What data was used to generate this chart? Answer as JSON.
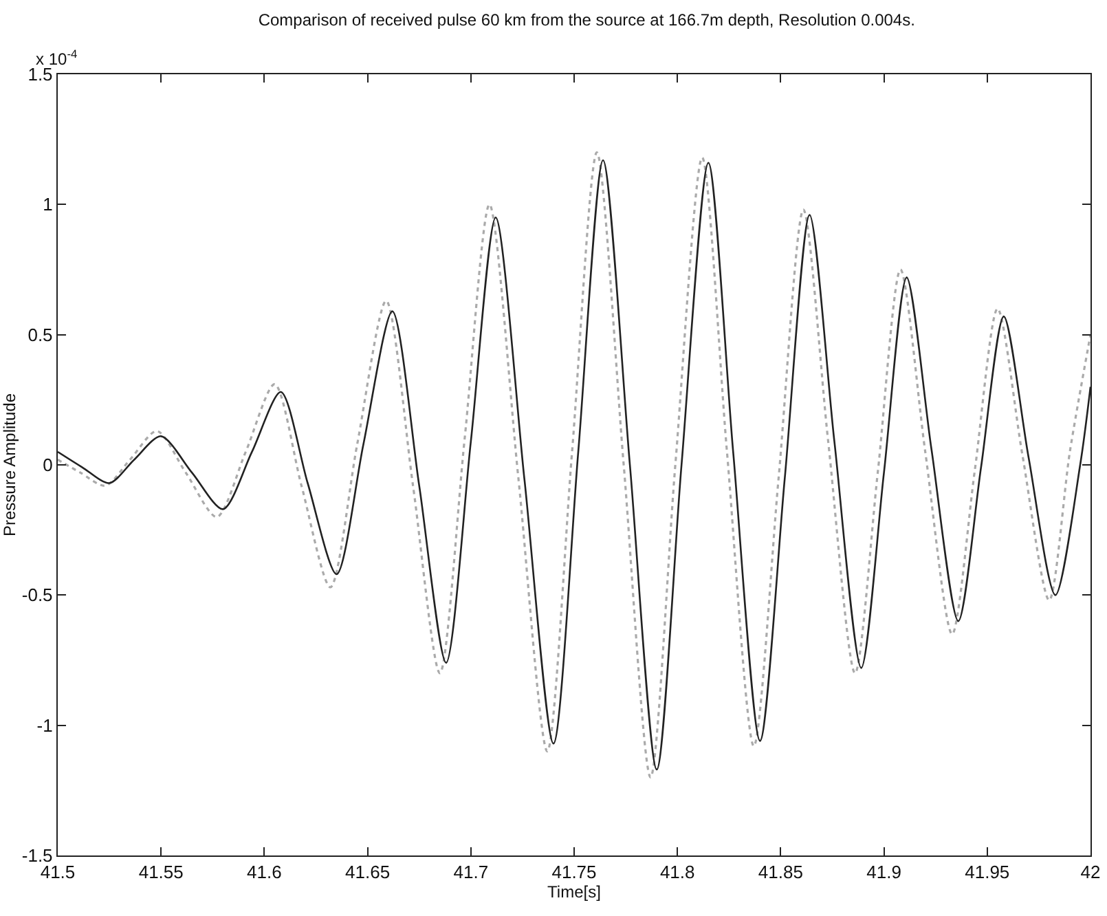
{
  "chart_data": {
    "type": "line",
    "title": "Comparison of received pulse 60 km from the source at 166.7m depth, Resolution 0.004s.",
    "xlabel": "Time[s]",
    "ylabel": "Pressure Amplitude",
    "annotations": [
      "x 10$^{-4}$"
    ],
    "xlim": [
      41.5,
      42
    ],
    "xticks": [
      41.5,
      41.55,
      41.6,
      41.65,
      41.7,
      41.75,
      41.8,
      41.85,
      41.9,
      41.95,
      42
    ],
    "ylim": [
      -1.5,
      1.5
    ],
    "yticks": [
      -1.5,
      -1,
      -0.5,
      0,
      0.5,
      1,
      1.5
    ],
    "grid": false,
    "marker": "none",
    "series": [
      {
        "color": "#aaaaaa",
        "line_style": "dotted",
        "x": [
          41.5,
          41.511,
          41.523,
          41.535,
          41.548,
          41.562,
          41.577,
          41.591,
          41.605,
          41.618,
          41.632,
          41.645,
          41.659,
          41.672,
          41.685,
          41.697,
          41.709,
          41.723,
          41.737,
          41.749,
          41.761,
          41.774,
          41.787,
          41.799,
          41.812,
          41.824,
          41.837,
          41.849,
          41.861,
          41.873,
          41.886,
          41.897,
          41.908,
          41.92,
          41.933,
          41.944,
          41.955,
          41.967,
          41.98,
          41.99,
          42.0
        ],
        "values": [
          0.02,
          -0.03,
          -0.08,
          0.02,
          0.13,
          -0.03,
          -0.2,
          0.05,
          0.31,
          -0.08,
          -0.47,
          0.08,
          0.63,
          -0.08,
          -0.8,
          0.1,
          1.0,
          -0.05,
          -1.1,
          0.05,
          1.2,
          0,
          -1.2,
          0,
          1.18,
          0.05,
          -1.08,
          -0.05,
          0.98,
          0.09,
          -0.8,
          -0.03,
          0.75,
          0.05,
          -0.65,
          -0.02,
          0.6,
          0.04,
          -0.52,
          0.05,
          0.5
        ]
      },
      {
        "color": "#222222",
        "line_style": "solid",
        "x": [
          41.5,
          41.512,
          41.525,
          41.537,
          41.55,
          41.565,
          41.58,
          41.594,
          41.608,
          41.621,
          41.635,
          41.648,
          41.662,
          41.675,
          41.688,
          41.7,
          41.712,
          41.726,
          41.74,
          41.752,
          41.764,
          41.777,
          41.79,
          41.802,
          41.815,
          41.827,
          41.84,
          41.852,
          41.864,
          41.876,
          41.889,
          41.9,
          41.911,
          41.923,
          41.936,
          41.947,
          41.958,
          41.97,
          41.983,
          41.995,
          42.0
        ],
        "values": [
          0.05,
          -0.01,
          -0.07,
          0.02,
          0.11,
          -0.03,
          -0.17,
          0.05,
          0.28,
          -0.07,
          -0.42,
          0.08,
          0.59,
          -0.08,
          -0.76,
          0.09,
          0.95,
          -0.06,
          -1.07,
          0.05,
          1.17,
          0,
          -1.17,
          0,
          1.16,
          0.05,
          -1.06,
          -0.05,
          0.96,
          0.09,
          -0.78,
          -0.03,
          0.72,
          0.06,
          -0.6,
          -0.01,
          0.57,
          0.03,
          -0.5,
          0,
          0.3
        ]
      }
    ]
  }
}
